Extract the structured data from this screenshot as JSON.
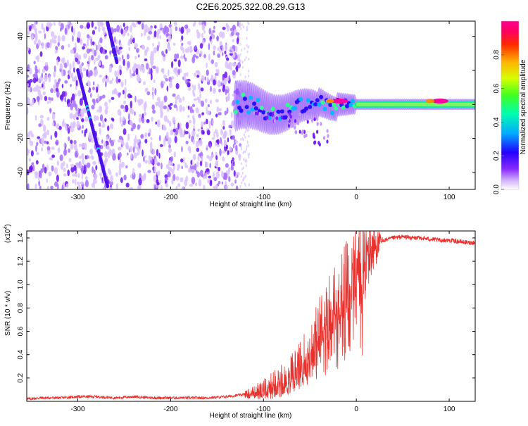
{
  "title": "C2E6.2025.322.08.29.G13",
  "chart_data": [
    {
      "type": "heatmap",
      "xlabel": "Height of straight line (km)",
      "ylabel": "Frequency (Hz)",
      "xlim": [
        -355,
        128
      ],
      "ylim": [
        -50,
        49
      ],
      "xticks": [
        -300,
        -200,
        -100,
        0,
        100
      ],
      "yticks": [
        -40,
        -20,
        0,
        20,
        40
      ],
      "colorbar": {
        "label": "Normalized spectral amplitude",
        "range": [
          0,
          1
        ],
        "ticks": [
          0.0,
          0.2,
          0.4,
          0.6,
          0.8
        ],
        "colormap": [
          "#ffffff",
          "#c8a0ff",
          "#7a00ff",
          "#0000ff",
          "#00c8ff",
          "#00ff80",
          "#80ff00",
          "#ffff00",
          "#ff8000",
          "#ff0000",
          "#ff00a0"
        ]
      },
      "features": [
        {
          "kind": "diffuse_noise",
          "x_range": [
            -355,
            -125
          ],
          "y_range": [
            -50,
            49
          ],
          "amplitude": 0.15
        },
        {
          "kind": "drifting_line",
          "x_start": -300,
          "y_start": 20,
          "x_end": -268,
          "y_end": -48,
          "amplitude": 0.3
        },
        {
          "kind": "drifting_line",
          "x_start": -268,
          "y_start": 48,
          "x_end": -258,
          "y_end": 25,
          "amplitude": 0.25
        },
        {
          "kind": "carrier",
          "x_range": [
            -130,
            128
          ],
          "center_hz": 0,
          "amplitude": 0.55
        },
        {
          "kind": "hotspot",
          "x": -18,
          "y": 2,
          "amplitude": 0.95
        },
        {
          "kind": "hotspot",
          "x": 90,
          "y": 2,
          "amplitude": 0.95
        }
      ]
    },
    {
      "type": "line",
      "xlabel": "Height of straight line (km)",
      "ylabel": "SNR (10 * v/v)",
      "yscale_label": "(x10",
      "yscale_exp": "4",
      "yscale_close": ")",
      "xlim": [
        -355,
        128
      ],
      "ylim": [
        0,
        1.46
      ],
      "xticks": [
        -300,
        -200,
        -100,
        0,
        100
      ],
      "yticks": [
        0.2,
        0.4,
        0.6,
        0.8,
        1.0,
        1.2,
        1.4
      ],
      "color": "#e8302c",
      "series": [
        {
          "x": [
            -355,
            -340,
            -320,
            -300,
            -280,
            -260,
            -240,
            -220,
            -200,
            -180,
            -160,
            -140,
            -130,
            -120,
            -110,
            -100,
            -95,
            -90,
            -85,
            -80,
            -75,
            -70,
            -65,
            -60,
            -55,
            -50,
            -45,
            -40,
            -35,
            -30,
            -25,
            -20,
            -16,
            -12,
            -8,
            -5,
            0,
            5,
            10,
            15,
            20,
            25,
            30,
            35,
            40,
            50,
            60,
            70,
            80,
            90,
            100,
            110,
            120,
            128
          ],
          "values": [
            0.02,
            0.03,
            0.03,
            0.04,
            0.04,
            0.03,
            0.04,
            0.03,
            0.03,
            0.03,
            0.03,
            0.04,
            0.05,
            0.06,
            0.08,
            0.1,
            0.12,
            0.14,
            0.16,
            0.18,
            0.2,
            0.24,
            0.28,
            0.32,
            0.38,
            0.45,
            0.55,
            0.62,
            0.7,
            0.78,
            0.85,
            0.9,
            0.95,
            1.0,
            1.06,
            1.1,
            1.14,
            1.18,
            1.22,
            1.27,
            1.32,
            1.36,
            1.38,
            1.39,
            1.4,
            1.41,
            1.4,
            1.4,
            1.39,
            1.38,
            1.38,
            1.37,
            1.36,
            1.36
          ]
        }
      ]
    }
  ]
}
